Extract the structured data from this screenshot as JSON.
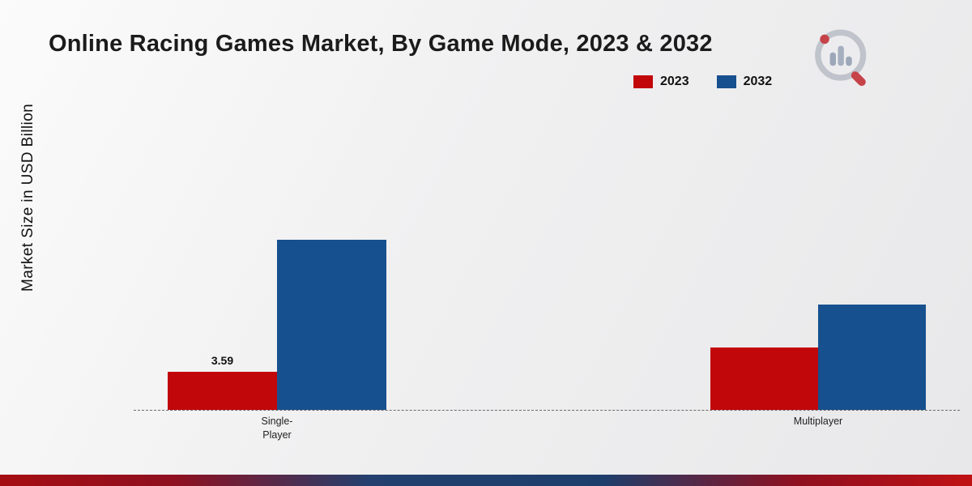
{
  "title": "Online Racing Games Market, By Game Mode, 2023 & 2032",
  "ylabel": "Market Size in USD Billion",
  "chart_data": {
    "type": "bar",
    "title": "Online Racing Games Market, By Game Mode, 2023 & 2032",
    "ylabel": "Market Size in USD Billion",
    "xlabel": "",
    "categories": [
      "Single-Player",
      "Multiplayer"
    ],
    "series": [
      {
        "name": "2023",
        "color": "#c2070b",
        "values": [
          3.59,
          5.9
        ]
      },
      {
        "name": "2032",
        "color": "#17508e",
        "values": [
          16.0,
          9.9
        ]
      }
    ],
    "data_labels": [
      "3.59"
    ],
    "ylim": [
      0,
      18
    ],
    "grid": false,
    "legend_position": "top-right",
    "baseline_style": "dashed"
  },
  "xaxis": {
    "labels": [
      [
        "Single-",
        "Player"
      ],
      [
        "Multiplayer"
      ]
    ]
  },
  "colors": {
    "series_2023": "#c2070b",
    "series_2032": "#17508e",
    "bottom_strip_red": "#a50d12",
    "bottom_strip_blue": "#1d3e6b"
  }
}
